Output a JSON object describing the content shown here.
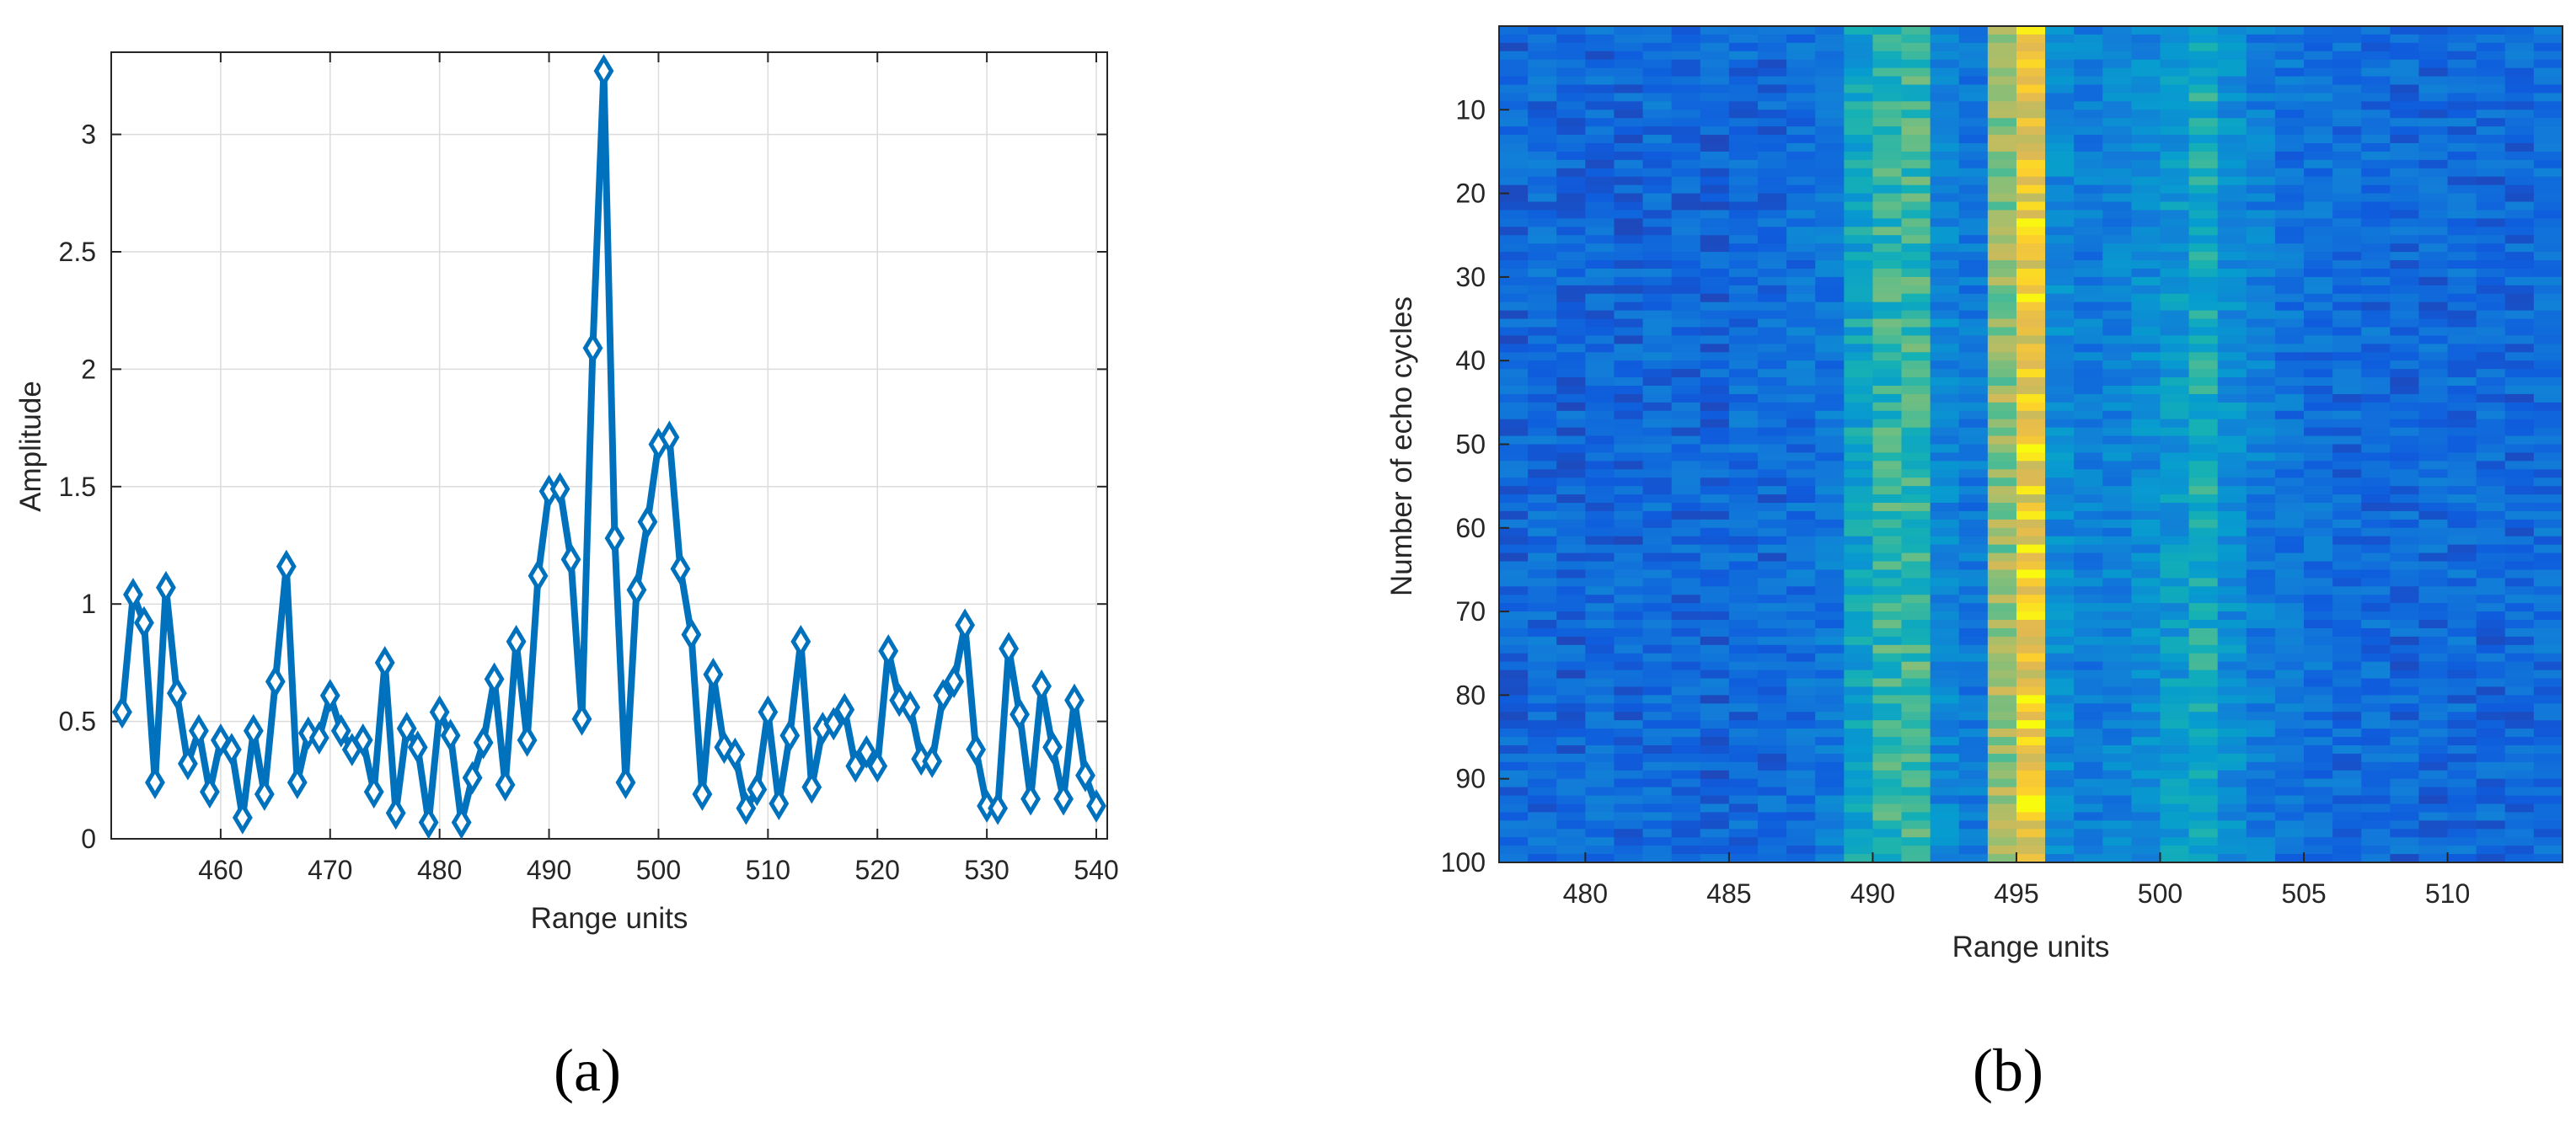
{
  "chart_data": [
    {
      "type": "line",
      "panel_label": "(a)",
      "xlabel": "Range units",
      "ylabel": "Amplitude",
      "xlim": [
        450,
        541
      ],
      "ylim": [
        0,
        3.35
      ],
      "xticks": [
        460,
        470,
        480,
        490,
        500,
        510,
        520,
        530,
        540
      ],
      "yticks": [
        0,
        0.5,
        1,
        1.5,
        2,
        2.5,
        3
      ],
      "ytick_labels": [
        "0",
        "0.5",
        "1",
        "1.5",
        "2",
        "2.5",
        "3"
      ],
      "grid": true,
      "color": "#0072bd",
      "marker": "diamond",
      "series": [
        {
          "x": [
            451,
            452,
            453,
            454,
            455,
            456,
            457,
            458,
            459,
            460,
            461,
            462,
            463,
            464,
            465,
            466,
            467,
            468,
            469,
            470,
            471,
            472,
            473,
            474,
            475,
            476,
            477,
            478,
            479,
            480,
            481,
            482,
            483,
            484,
            485,
            486,
            487,
            488,
            489,
            490,
            491,
            492,
            493,
            494,
            495,
            496,
            497,
            498,
            499,
            500,
            501,
            502,
            503,
            504,
            505,
            506,
            507,
            508,
            509,
            510,
            511,
            512,
            513,
            514,
            515,
            516,
            517,
            518,
            519,
            520,
            521,
            522,
            523,
            524,
            525,
            526,
            527,
            528,
            529,
            530,
            531,
            532,
            533,
            534,
            535,
            536,
            537,
            538,
            539,
            540
          ],
          "values": [
            0.54,
            1.04,
            0.92,
            0.24,
            1.07,
            0.62,
            0.32,
            0.46,
            0.2,
            0.42,
            0.38,
            0.09,
            0.46,
            0.19,
            0.67,
            1.16,
            0.24,
            0.45,
            0.43,
            0.61,
            0.46,
            0.38,
            0.42,
            0.2,
            0.75,
            0.11,
            0.47,
            0.39,
            0.07,
            0.54,
            0.44,
            0.07,
            0.26,
            0.41,
            0.68,
            0.23,
            0.84,
            0.42,
            1.12,
            1.48,
            1.49,
            1.19,
            0.51,
            2.09,
            3.27,
            1.28,
            0.24,
            1.06,
            1.35,
            1.68,
            1.71,
            1.15,
            0.87,
            0.19,
            0.7,
            0.39,
            0.36,
            0.13,
            0.21,
            0.54,
            0.15,
            0.44,
            0.84,
            0.22,
            0.47,
            0.49,
            0.55,
            0.31,
            0.37,
            0.31,
            0.8,
            0.59,
            0.56,
            0.34,
            0.33,
            0.61,
            0.67,
            0.91,
            0.38,
            0.14,
            0.13,
            0.81,
            0.53,
            0.17,
            0.65,
            0.39,
            0.17,
            0.59,
            0.27,
            0.14
          ]
        }
      ]
    },
    {
      "type": "heatmap",
      "panel_label": "(b)",
      "xlabel": "Range units",
      "ylabel": "Number of echo cycles",
      "xlim": [
        477,
        514
      ],
      "ylim": [
        100,
        0
      ],
      "xticks": [
        480,
        485,
        490,
        495,
        500,
        505,
        510
      ],
      "yticks": [
        10,
        20,
        30,
        40,
        50,
        60,
        70,
        80,
        90,
        100
      ],
      "colormap": "parula",
      "rows": 100,
      "columns_start": 477,
      "columns_end": 513,
      "column_profile": {
        "x": [
          477,
          478,
          479,
          480,
          481,
          482,
          483,
          484,
          485,
          486,
          487,
          488,
          489,
          490,
          491,
          492,
          493,
          494,
          495,
          496,
          497,
          498,
          499,
          500,
          501,
          502,
          503,
          504,
          505,
          506,
          507,
          508,
          509,
          510,
          511,
          512,
          513
        ],
        "mean_level": [
          0.2,
          0.22,
          0.2,
          0.21,
          0.2,
          0.22,
          0.21,
          0.2,
          0.22,
          0.21,
          0.24,
          0.27,
          0.48,
          0.58,
          0.6,
          0.34,
          0.28,
          0.72,
          0.9,
          0.36,
          0.3,
          0.32,
          0.36,
          0.42,
          0.52,
          0.38,
          0.3,
          0.25,
          0.24,
          0.22,
          0.22,
          0.21,
          0.21,
          0.22,
          0.21,
          0.21,
          0.22
        ]
      }
    }
  ]
}
